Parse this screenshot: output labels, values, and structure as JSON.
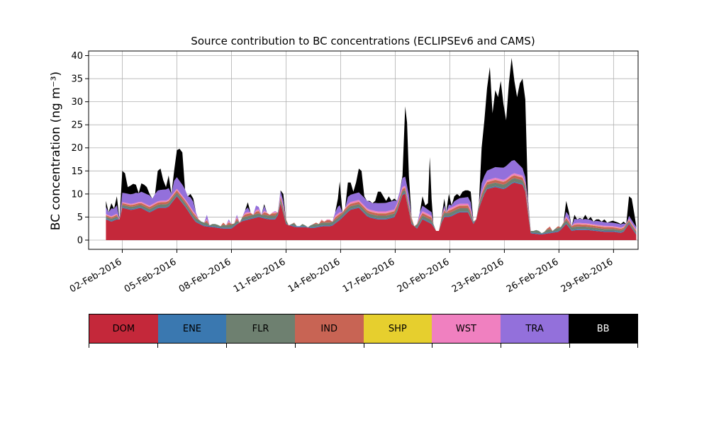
{
  "chart_data": {
    "type": "area",
    "stacked": true,
    "title": "Source contribution to BC concentrations (ECLIPSEv6 and CAMS)",
    "ylabel": "BC concentration (ng m⁻³)",
    "xlabel": "",
    "ylim": [
      -2,
      41
    ],
    "yticks": [
      0,
      5,
      10,
      15,
      20,
      25,
      30,
      35,
      40
    ],
    "xlim": [
      0.15,
      30.35
    ],
    "xticks": [
      {
        "day": 2,
        "label": "02-Feb-2016"
      },
      {
        "day": 5,
        "label": "05-Feb-2016"
      },
      {
        "day": 8,
        "label": "08-Feb-2016"
      },
      {
        "day": 11,
        "label": "11-Feb-2016"
      },
      {
        "day": 14,
        "label": "14-Feb-2016"
      },
      {
        "day": 17,
        "label": "17-Feb-2016"
      },
      {
        "day": 20,
        "label": "20-Feb-2016"
      },
      {
        "day": 23,
        "label": "23-Feb-2016"
      },
      {
        "day": 26,
        "label": "26-Feb-2016"
      },
      {
        "day": 29,
        "label": "29-Feb-2016"
      }
    ],
    "grid": true,
    "legend_placement": "below (colour bar)",
    "series": [
      {
        "name": "DOM",
        "color": "#c4283a"
      },
      {
        "name": "ENE",
        "color": "#3a78b0"
      },
      {
        "name": "FLR",
        "color": "#6e8070"
      },
      {
        "name": "IND",
        "color": "#c86454"
      },
      {
        "name": "SHP",
        "color": "#e6cf2e"
      },
      {
        "name": "WST",
        "color": "#f080c0"
      },
      {
        "name": "TRA",
        "color": "#9370db"
      },
      {
        "name": "BB",
        "color": "#000000"
      }
    ],
    "total_profile": [
      [
        1.1,
        8.5
      ],
      [
        1.25,
        6.0
      ],
      [
        1.4,
        8.0
      ],
      [
        1.55,
        6.8
      ],
      [
        1.7,
        9.5
      ],
      [
        1.85,
        4.5
      ],
      [
        2.0,
        15.0
      ],
      [
        2.15,
        14.5
      ],
      [
        2.3,
        11.5
      ],
      [
        2.45,
        11.8
      ],
      [
        2.6,
        12.2
      ],
      [
        2.75,
        12.0
      ],
      [
        2.9,
        10.2
      ],
      [
        3.05,
        12.3
      ],
      [
        3.2,
        12.0
      ],
      [
        3.35,
        11.5
      ],
      [
        3.5,
        10.0
      ],
      [
        3.65,
        9.0
      ],
      [
        3.8,
        10.0
      ],
      [
        3.95,
        15.0
      ],
      [
        4.1,
        15.5
      ],
      [
        4.25,
        13.0
      ],
      [
        4.4,
        11.5
      ],
      [
        4.55,
        14.0
      ],
      [
        4.7,
        10.0
      ],
      [
        4.85,
        15.0
      ],
      [
        5.0,
        19.5
      ],
      [
        5.15,
        19.8
      ],
      [
        5.3,
        19.0
      ],
      [
        5.45,
        11.0
      ],
      [
        5.6,
        9.5
      ],
      [
        5.75,
        10.0
      ],
      [
        5.9,
        9.0
      ],
      [
        6.05,
        6.0
      ],
      [
        6.2,
        4.5
      ],
      [
        6.35,
        4.0
      ],
      [
        6.5,
        3.8
      ],
      [
        6.65,
        5.5
      ],
      [
        6.8,
        3.2
      ],
      [
        6.95,
        3.5
      ],
      [
        7.1,
        3.5
      ],
      [
        7.25,
        3.3
      ],
      [
        7.4,
        3.0
      ],
      [
        7.55,
        3.8
      ],
      [
        7.7,
        3.2
      ],
      [
        7.85,
        4.5
      ],
      [
        8.0,
        3.5
      ],
      [
        8.15,
        3.6
      ],
      [
        8.3,
        5.5
      ],
      [
        8.45,
        3.8
      ],
      [
        8.6,
        5.0
      ],
      [
        8.75,
        6.5
      ],
      [
        8.9,
        8.2
      ],
      [
        9.05,
        6.0
      ],
      [
        9.2,
        5.5
      ],
      [
        9.35,
        7.5
      ],
      [
        9.5,
        7.2
      ],
      [
        9.65,
        5.5
      ],
      [
        9.8,
        7.8
      ],
      [
        9.95,
        6.0
      ],
      [
        10.1,
        5.5
      ],
      [
        10.25,
        6.0
      ],
      [
        10.4,
        6.3
      ],
      [
        10.55,
        6.0
      ],
      [
        10.7,
        10.8
      ],
      [
        10.85,
        10.0
      ],
      [
        11.0,
        4.5
      ],
      [
        11.15,
        3.2
      ],
      [
        11.3,
        3.5
      ],
      [
        11.45,
        3.8
      ],
      [
        11.6,
        3.0
      ],
      [
        11.75,
        3.0
      ],
      [
        11.9,
        3.5
      ],
      [
        12.05,
        3.2
      ],
      [
        12.2,
        2.8
      ],
      [
        12.35,
        3.2
      ],
      [
        12.5,
        3.5
      ],
      [
        12.65,
        3.8
      ],
      [
        12.8,
        3.5
      ],
      [
        12.95,
        4.5
      ],
      [
        13.1,
        4.0
      ],
      [
        13.25,
        4.5
      ],
      [
        13.4,
        4.5
      ],
      [
        13.55,
        4.0
      ],
      [
        13.7,
        6.0
      ],
      [
        13.85,
        9.0
      ],
      [
        13.95,
        12.7
      ],
      [
        14.1,
        6.0
      ],
      [
        14.25,
        7.0
      ],
      [
        14.4,
        12.5
      ],
      [
        14.55,
        12.5
      ],
      [
        14.7,
        10.5
      ],
      [
        14.85,
        12.5
      ],
      [
        15.0,
        15.5
      ],
      [
        15.15,
        15.0
      ],
      [
        15.3,
        9.5
      ],
      [
        15.45,
        8.5
      ],
      [
        15.6,
        8.5
      ],
      [
        15.75,
        8.0
      ],
      [
        15.9,
        8.5
      ],
      [
        16.05,
        10.5
      ],
      [
        16.2,
        10.5
      ],
      [
        16.35,
        9.5
      ],
      [
        16.5,
        8.5
      ],
      [
        16.65,
        9.5
      ],
      [
        16.8,
        8.5
      ],
      [
        16.95,
        9.0
      ],
      [
        17.1,
        8.5
      ],
      [
        17.25,
        10.5
      ],
      [
        17.4,
        14.0
      ],
      [
        17.55,
        29.0
      ],
      [
        17.65,
        25.5
      ],
      [
        17.75,
        14.0
      ],
      [
        17.9,
        5.0
      ],
      [
        18.05,
        3.0
      ],
      [
        18.2,
        3.5
      ],
      [
        18.35,
        6.0
      ],
      [
        18.5,
        9.5
      ],
      [
        18.65,
        7.5
      ],
      [
        18.8,
        8.0
      ],
      [
        18.9,
        18.0
      ],
      [
        19.0,
        9.0
      ],
      [
        19.1,
        3.5
      ],
      [
        19.25,
        2.0
      ],
      [
        19.4,
        2.0
      ],
      [
        19.55,
        5.0
      ],
      [
        19.7,
        9.0
      ],
      [
        19.8,
        6.0
      ],
      [
        19.95,
        10.0
      ],
      [
        20.1,
        7.5
      ],
      [
        20.25,
        9.5
      ],
      [
        20.4,
        10.0
      ],
      [
        20.55,
        9.5
      ],
      [
        20.7,
        10.5
      ],
      [
        20.85,
        10.8
      ],
      [
        21.0,
        10.8
      ],
      [
        21.15,
        10.5
      ],
      [
        21.3,
        4.0
      ],
      [
        21.45,
        4.5
      ],
      [
        21.6,
        8.0
      ],
      [
        21.75,
        20.0
      ],
      [
        21.9,
        26.0
      ],
      [
        22.05,
        33.0
      ],
      [
        22.2,
        37.5
      ],
      [
        22.35,
        27.5
      ],
      [
        22.5,
        32.5
      ],
      [
        22.65,
        31.0
      ],
      [
        22.8,
        34.5
      ],
      [
        22.95,
        29.5
      ],
      [
        23.1,
        26.0
      ],
      [
        23.25,
        34.0
      ],
      [
        23.4,
        39.5
      ],
      [
        23.55,
        34.5
      ],
      [
        23.7,
        31.0
      ],
      [
        23.85,
        34.0
      ],
      [
        24.0,
        35.0
      ],
      [
        24.15,
        30.5
      ],
      [
        24.3,
        9.0
      ],
      [
        24.45,
        2.0
      ],
      [
        24.6,
        2.0
      ],
      [
        24.75,
        2.2
      ],
      [
        24.9,
        2.0
      ],
      [
        25.05,
        1.5
      ],
      [
        25.2,
        1.8
      ],
      [
        25.35,
        2.5
      ],
      [
        25.5,
        3.0
      ],
      [
        25.65,
        2.0
      ],
      [
        25.8,
        2.5
      ],
      [
        25.95,
        3.0
      ],
      [
        26.1,
        2.8
      ],
      [
        26.25,
        3.8
      ],
      [
        26.4,
        8.5
      ],
      [
        26.55,
        6.0
      ],
      [
        26.7,
        3.0
      ],
      [
        26.85,
        5.5
      ],
      [
        27.0,
        4.5
      ],
      [
        27.15,
        4.8
      ],
      [
        27.3,
        4.5
      ],
      [
        27.45,
        5.5
      ],
      [
        27.6,
        4.5
      ],
      [
        27.75,
        5.0
      ],
      [
        27.9,
        4.0
      ],
      [
        28.05,
        4.5
      ],
      [
        28.2,
        4.5
      ],
      [
        28.35,
        4.0
      ],
      [
        28.5,
        4.5
      ],
      [
        28.65,
        3.8
      ],
      [
        28.8,
        4.0
      ],
      [
        28.95,
        4.2
      ],
      [
        29.1,
        4.0
      ],
      [
        29.25,
        3.8
      ],
      [
        29.4,
        3.5
      ],
      [
        29.55,
        4.0
      ],
      [
        29.7,
        3.5
      ],
      [
        29.85,
        9.5
      ],
      [
        30.0,
        9.0
      ],
      [
        30.15,
        5.5
      ],
      [
        30.25,
        3.0
      ]
    ],
    "layer_profiles": [
      [
        [
          1.1,
          4.5
        ],
        [
          1.4,
          4.0
        ],
        [
          1.7,
          4.5
        ],
        [
          2.0,
          7.0
        ],
        [
          2.5,
          6.5
        ],
        [
          3.0,
          7.0
        ],
        [
          3.5,
          6.0
        ],
        [
          4.0,
          7.0
        ],
        [
          4.5,
          7.0
        ],
        [
          5.0,
          9.5
        ],
        [
          5.5,
          7.0
        ],
        [
          6.0,
          4.0
        ],
        [
          6.5,
          3.0
        ],
        [
          7.0,
          2.8
        ],
        [
          7.5,
          2.5
        ],
        [
          8.0,
          2.5
        ],
        [
          8.5,
          4.0
        ],
        [
          9.0,
          4.5
        ],
        [
          9.5,
          5.0
        ],
        [
          10.0,
          4.5
        ],
        [
          10.5,
          4.5
        ],
        [
          10.7,
          8.0
        ],
        [
          11.0,
          3.5
        ],
        [
          11.5,
          2.8
        ],
        [
          12.0,
          2.8
        ],
        [
          12.5,
          2.6
        ],
        [
          13.0,
          3.0
        ],
        [
          13.5,
          3.0
        ],
        [
          14.0,
          4.5
        ],
        [
          14.5,
          6.5
        ],
        [
          15.0,
          7.0
        ],
        [
          15.5,
          5.0
        ],
        [
          16.0,
          4.5
        ],
        [
          16.5,
          4.5
        ],
        [
          17.0,
          5.0
        ],
        [
          17.5,
          11.0
        ],
        [
          17.9,
          3.5
        ],
        [
          18.2,
          2.5
        ],
        [
          18.5,
          4.5
        ],
        [
          19.0,
          3.5
        ],
        [
          19.3,
          1.8
        ],
        [
          19.7,
          5.0
        ],
        [
          20.0,
          5.0
        ],
        [
          20.5,
          6.0
        ],
        [
          21.0,
          6.0
        ],
        [
          21.3,
          3.5
        ],
        [
          21.7,
          8.0
        ],
        [
          22.0,
          11.0
        ],
        [
          22.5,
          11.5
        ],
        [
          23.0,
          11.0
        ],
        [
          23.5,
          12.5
        ],
        [
          24.0,
          12.0
        ],
        [
          24.2,
          10.0
        ],
        [
          24.4,
          1.5
        ],
        [
          25.0,
          1.2
        ],
        [
          25.5,
          1.5
        ],
        [
          26.0,
          1.8
        ],
        [
          26.4,
          3.5
        ],
        [
          26.7,
          2.0
        ],
        [
          27.0,
          2.2
        ],
        [
          27.5,
          2.2
        ],
        [
          28.0,
          2.0
        ],
        [
          28.5,
          1.8
        ],
        [
          29.0,
          1.8
        ],
        [
          29.5,
          1.5
        ],
        [
          29.85,
          3.5
        ],
        [
          30.1,
          2.0
        ],
        [
          30.25,
          1.2
        ]
      ],
      [
        [
          1.1,
          0.2
        ],
        [
          30.25,
          0.2
        ]
      ],
      [
        [
          1.1,
          0.4
        ],
        [
          5.0,
          0.6
        ],
        [
          17.5,
          0.6
        ],
        [
          23.5,
          0.8
        ],
        [
          30.25,
          0.3
        ]
      ],
      [
        [
          1.1,
          0.3
        ],
        [
          5.0,
          0.5
        ],
        [
          17.5,
          0.5
        ],
        [
          23.5,
          0.6
        ],
        [
          30.25,
          0.3
        ]
      ],
      [
        [
          1.1,
          0.05
        ],
        [
          30.25,
          0.05
        ]
      ],
      [
        [
          1.1,
          0.2
        ],
        [
          5.0,
          0.3
        ],
        [
          23.5,
          0.4
        ],
        [
          30.25,
          0.2
        ]
      ],
      [
        [
          1.1,
          1.5
        ],
        [
          2.0,
          2.0
        ],
        [
          5.0,
          2.5
        ],
        [
          8.0,
          1.0
        ],
        [
          11.0,
          1.0
        ],
        [
          14.0,
          1.5
        ],
        [
          17.5,
          2.0
        ],
        [
          19.3,
          0.5
        ],
        [
          22.0,
          2.0
        ],
        [
          23.5,
          3.0
        ],
        [
          24.4,
          0.5
        ],
        [
          26.4,
          1.0
        ],
        [
          30.25,
          0.6
        ]
      ]
    ]
  }
}
